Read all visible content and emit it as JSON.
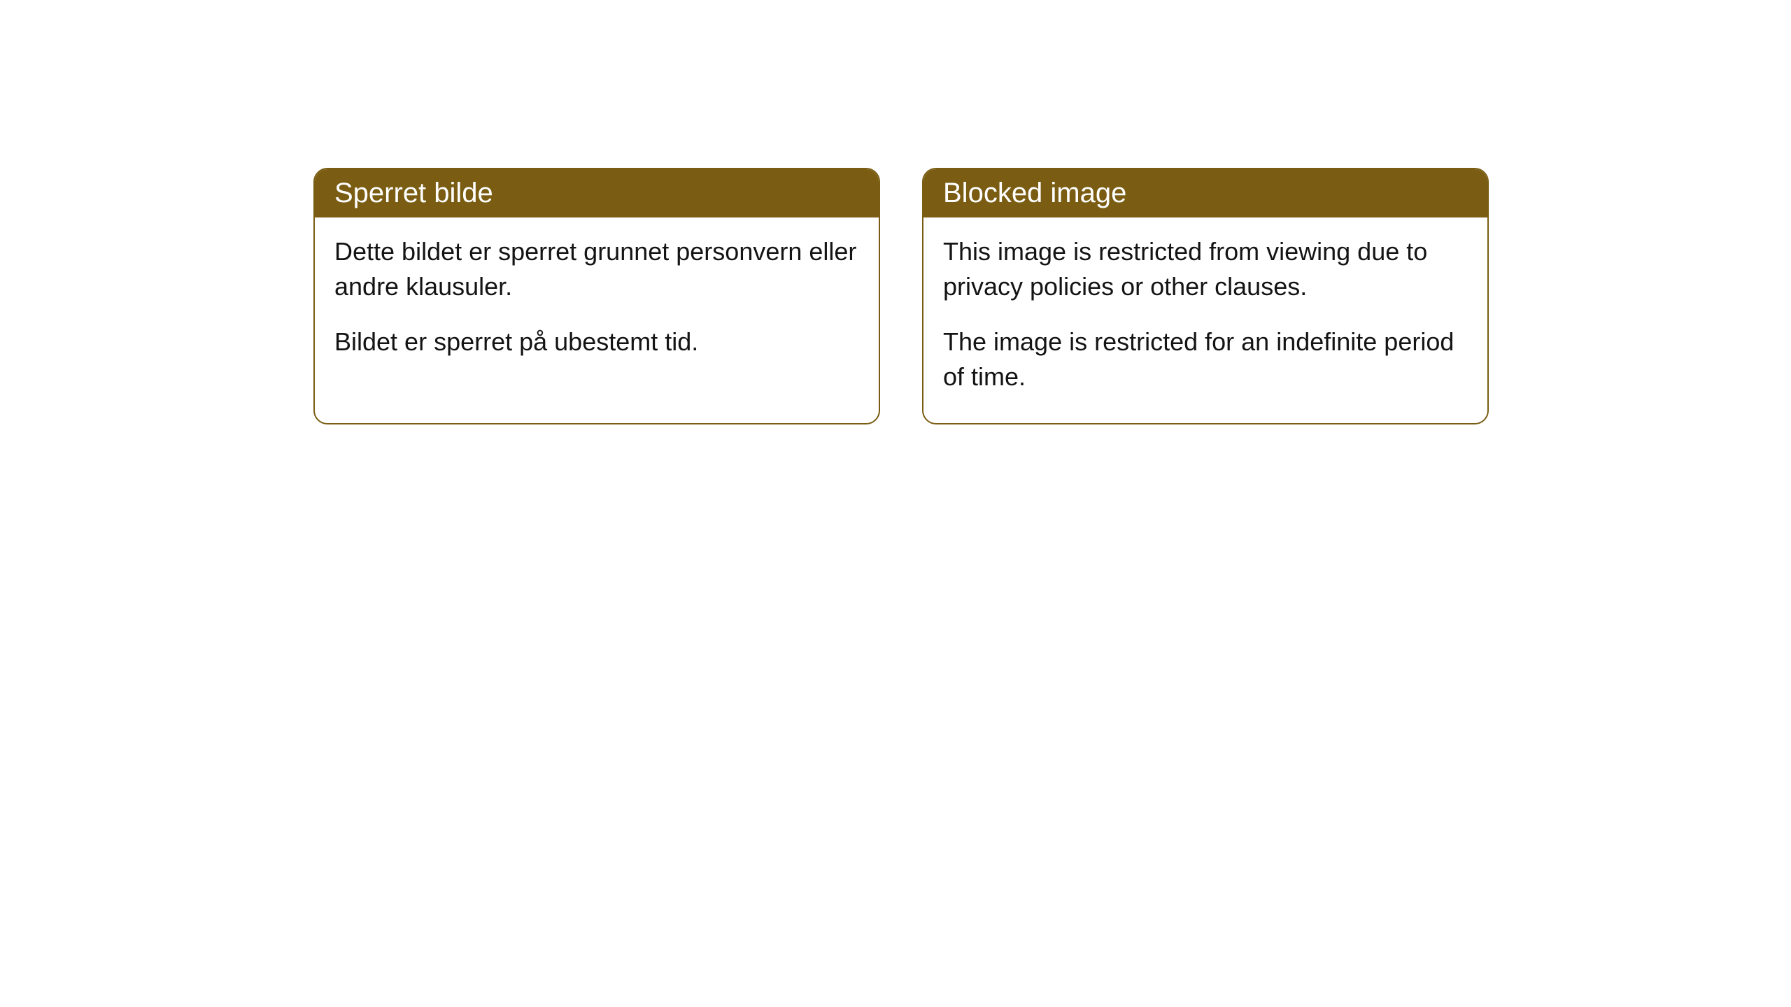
{
  "cards": [
    {
      "title": "Sperret bilde",
      "paragraph1": "Dette bildet er sperret grunnet personvern eller andre klausuler.",
      "paragraph2": "Bildet er sperret på ubestemt tid."
    },
    {
      "title": "Blocked image",
      "paragraph1": "This image is restricted from viewing due to privacy policies or other clauses.",
      "paragraph2": "The image is restricted for an indefinite period of time."
    }
  ],
  "styling": {
    "header_background_color": "#7a5d13",
    "header_text_color": "#ffffff",
    "card_border_color": "#7a5d13",
    "card_background_color": "#ffffff",
    "body_text_color": "#141414",
    "page_background_color": "#ffffff",
    "border_radius": 20,
    "title_fontsize": 40,
    "body_fontsize": 36
  }
}
